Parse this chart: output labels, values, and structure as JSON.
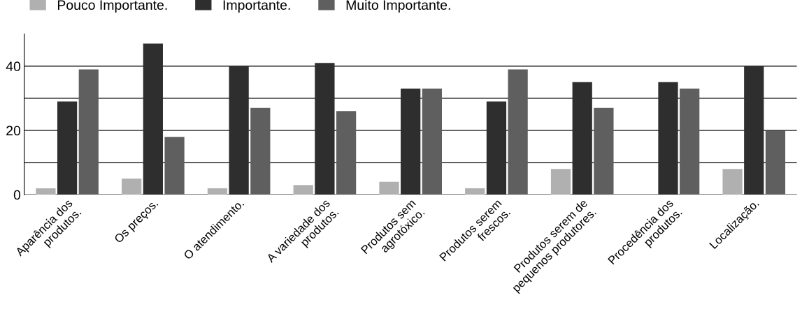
{
  "chart_data": {
    "type": "bar",
    "categories": [
      "Aparência dos\nprodutos.",
      "Os preços.",
      "O atendimento.",
      "A variedade dos\nprodutos.",
      "Produtos sem\nagrotóxico.",
      "Produtos serem\nfrescos.",
      "Produtos serem de\npequenos produtores.",
      "Procedência dos\nprodutos.",
      "Localização."
    ],
    "series": [
      {
        "name": "Pouco Importante.",
        "color": "#b0b0b0",
        "values": [
          2,
          5,
          2,
          3,
          4,
          2,
          8,
          0,
          8
        ]
      },
      {
        "name": "Importante.",
        "color": "#2e2e2e",
        "values": [
          29,
          47,
          40,
          41,
          33,
          29,
          35,
          35,
          40
        ]
      },
      {
        "name": "Muito Importante.",
        "color": "#5f5f5f",
        "values": [
          39,
          18,
          27,
          26,
          33,
          39,
          27,
          33,
          20
        ]
      }
    ],
    "yticks": [
      0,
      {
        "value": 10,
        "label": null
      },
      20,
      {
        "value": 30,
        "label": null
      },
      40
    ],
    "ylim": [
      0,
      50
    ],
    "grid": "y",
    "legend": "top left"
  }
}
